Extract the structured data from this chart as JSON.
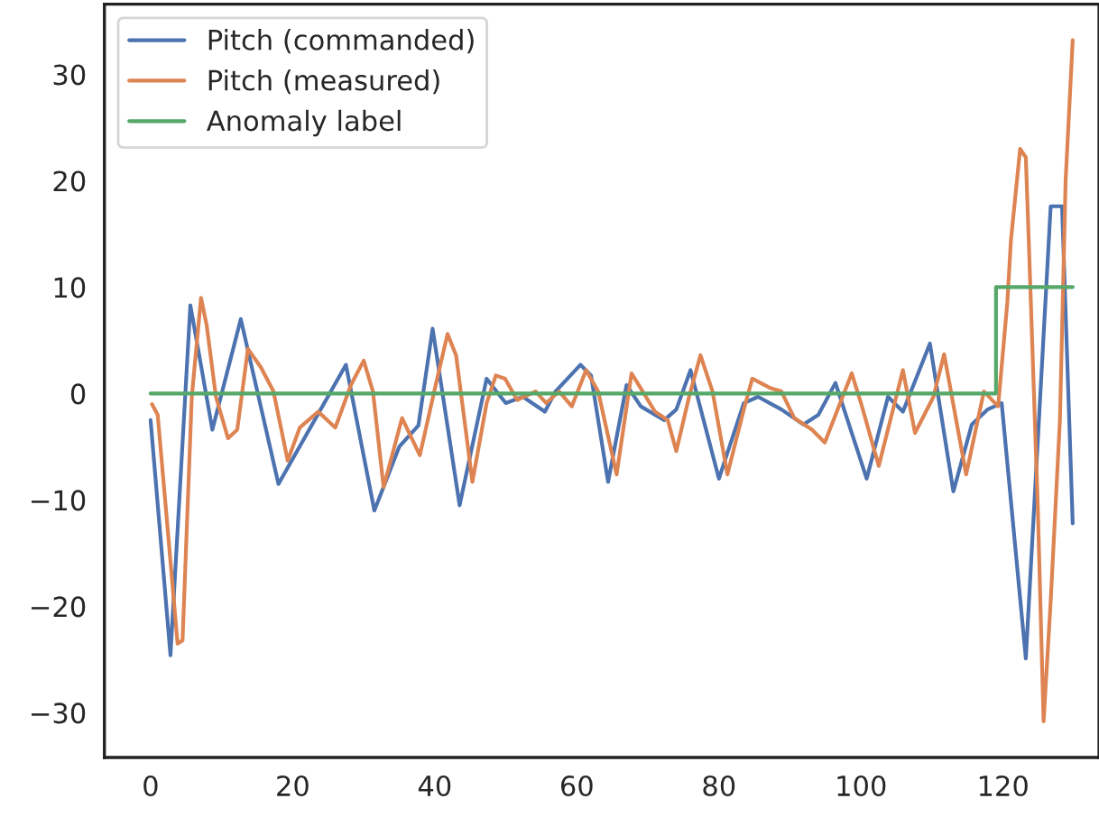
{
  "chart_data": {
    "type": "line",
    "xlim": [
      -6.5,
      133.5
    ],
    "ylim": [
      -34.2,
      36.6
    ],
    "xticks": [
      0,
      20,
      40,
      60,
      80,
      100,
      120
    ],
    "yticks": [
      -30,
      -20,
      -10,
      0,
      10,
      20,
      30
    ],
    "grid": false,
    "legend": "top left",
    "line_style": "solid",
    "series": [
      {
        "name": "Pitch (commanded)",
        "color": "#4c72b0",
        "x": [
          0,
          2.8,
          5.6,
          8.7,
          12.7,
          18,
          27.5,
          31.5,
          35,
          37.7,
          39.7,
          43.5,
          47.3,
          50,
          52.4,
          55.5,
          57,
          60.5,
          62,
          64.4,
          67,
          69,
          72.3,
          74,
          76,
          80,
          83.5,
          85.5,
          88.8,
          91.9,
          94,
          96.4,
          100.8,
          103.8,
          105.9,
          109.7,
          113,
          115.6,
          117.8,
          119.8,
          123.2,
          126.7,
          128.3,
          129.8
        ],
        "values": [
          -2.5,
          -24.6,
          8.3,
          -3.4,
          7,
          -8.5,
          2.7,
          -11,
          -5,
          -3,
          6.1,
          -10.5,
          1.4,
          -0.9,
          -0.3,
          -1.7,
          0.2,
          2.7,
          1.7,
          -8.3,
          0.8,
          -1.2,
          -2.5,
          -1.5,
          2.2,
          -8,
          -0.9,
          -0.3,
          -1.5,
          -2.9,
          -2,
          1,
          -8,
          -0.3,
          -1.7,
          4.7,
          -9.2,
          -2.9,
          -1.5,
          -0.9,
          -24.9,
          17.6,
          17.6,
          -12.2
        ]
      },
      {
        "name": "Pitch (measured)",
        "color": "#dd8452",
        "x": [
          0.2,
          1,
          2.4,
          3.8,
          4.5,
          5.8,
          7.1,
          7.9,
          9.2,
          10.9,
          12.2,
          13.7,
          15.5,
          17.3,
          19.3,
          21,
          23.6,
          26,
          28.2,
          30,
          31.3,
          32.8,
          35.4,
          37.9,
          40.2,
          41.8,
          43,
          45.3,
          47.3,
          48.6,
          49.9,
          51.6,
          54.2,
          55.7,
          57.5,
          59.3,
          61.3,
          63,
          65.6,
          67.7,
          69,
          71,
          72.8,
          74,
          75.8,
          77.4,
          79.1,
          81.2,
          83.5,
          84.7,
          87.3,
          88.8,
          90.6,
          93.1,
          94.9,
          98.7,
          100,
          102.5,
          105.9,
          107.6,
          110.2,
          111.7,
          114.8,
          117.3,
          119.3,
          120.6,
          121.1,
          122.4,
          123.2,
          123.7,
          124.9,
          125.7,
          126.7,
          128,
          128.8,
          129.8
        ],
        "values": [
          -1,
          -2,
          -12.7,
          -23.5,
          -23.2,
          -0.3,
          9,
          6.4,
          -0.3,
          -4.2,
          -3.4,
          4.2,
          2.5,
          0.2,
          -6.3,
          -3.2,
          -1.7,
          -3.2,
          0.8,
          3.1,
          0.2,
          -8.8,
          -2.3,
          -5.8,
          1,
          5.6,
          3.6,
          -8.3,
          -0.9,
          1.7,
          1.4,
          -0.6,
          0.2,
          -0.9,
          0.2,
          -1.2,
          2.2,
          0.2,
          -7.6,
          1.9,
          0.5,
          -1.7,
          -2.5,
          -5.4,
          -0.3,
          3.6,
          0.2,
          -7.6,
          -1.5,
          1.4,
          0.5,
          0.2,
          -2.3,
          -3.4,
          -4.6,
          1.9,
          -0.9,
          -6.8,
          2.2,
          -3.7,
          -0.3,
          3.7,
          -7.6,
          0.2,
          -1.2,
          8.6,
          14.4,
          23,
          22.2,
          12.7,
          -11,
          -30.8,
          -19.5,
          -2.5,
          20,
          33.2
        ]
      },
      {
        "name": "Anomaly label",
        "color": "#55a868",
        "x": [
          0,
          119,
          119,
          129.8
        ],
        "values": [
          0,
          0,
          10,
          10
        ]
      }
    ]
  }
}
